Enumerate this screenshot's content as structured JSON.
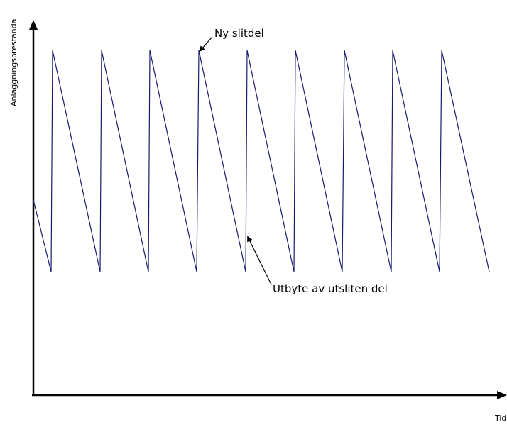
{
  "diagram": {
    "y_axis_label": "Anläggningsprestanda",
    "x_axis_label": "Tid",
    "annotation_new_part": "Ny slitdel",
    "annotation_replacement": "Utbyte av utsliten del",
    "colors": {
      "wave": "#1a1a6e",
      "axes": "#000000"
    }
  }
}
